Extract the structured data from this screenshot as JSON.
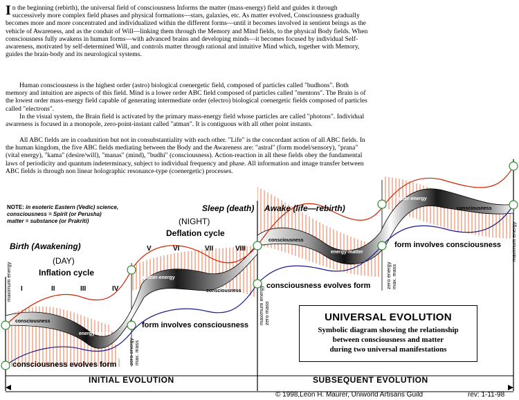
{
  "text": {
    "para1_first": "I",
    "para1": "n the beginning (rebirth), the universal field of consciousness Informs the matter (mass-energy) field and guides it through successively more complex field phases and physical formations—stars, galaxies, etc. As matter evolved, Consciousness gradually becomes more and more concentrated and individualized within the different forms—until it becomes involved in sentient beings as the vehicle of Awareness, and as the conduit of Will—linking them through the Memory and Mind fields, to the physical Body fields. When consciousness fully awakens in human forms—with advanced brains and developing minds—it becomes focused by individual Self-awareness, motivated by self-determined Will, and controls matter through rational and intuitive Mind which, together with Memory, guides the brain-body and its neurological systems.",
    "para2": "Human consciousness is the highest order (astro) biological coenergetic field, composed of particles called \"budhons\". Both memory and intuition are aspects of this field. Mind is a lower order ABC field composed of particles called \"mentons\". The Brain is of the lowest order mass-energy field capable of generating intermediate order (electro) biological coenergetic fields composed of particles called \"electrons\".",
    "para3": "In the visual system, the Brain field is activated by the primary mass-energy field whose particles are called \"photons\". Individual awareness is focused in a monopole, zero-point-instant called \"atman\". It is contiguous with all other point instants.",
    "para4": "All ABC fields are in coadunition but not in consubstantiality with each other. \"Life\" is the concordant action of all ABC fields. In the human kingdom, the five ABC fields mediating between the Body and the Awareness are: \"astral\" (form model/sensory), \"prana\" (vital energy), \"kama\" (desire/will), \"manas\" (mind), \"budhi\" (consciousness). Action-reaction in all these fields obey the fundamental laws of periodicity and quantum indeterminacy, subject to individual frequency and phase. All information and image transfer between ABC fields is through non linear holographic resonance-type (coenergetic) processes."
  },
  "note": {
    "lead": "NOTE:",
    "line1": "in esoteric Eastern (Vedic) science,",
    "line2": "consciousness = Spirit (or Perusha)",
    "line3": "matter = substance (or Prakriti)"
  },
  "labels": {
    "birth": "Birth (Awakening)",
    "day": "(DAY)",
    "inflation": "Inflation cycle",
    "sleep": "Sleep (death)",
    "night": "(NIGHT)",
    "deflation": "Deflation cycle",
    "awake": "Awake (life—rebirth)",
    "stage_i": "I",
    "stage_ii": "II",
    "stage_iii": "III",
    "stage_iv": "IV",
    "stage_v": "V",
    "stage_vi": "VI",
    "stage_vii": "VII",
    "stage_viii": "VIII",
    "cef1": "consciousness evolves form",
    "fic1": "form involves consciousness",
    "cef2": "consciousness evolves form",
    "fic2": "form involves consciousness",
    "max_energy_left": "maximum energy",
    "zero_energy_1a": "zero energy",
    "zero_energy_1b": "max. mass",
    "max_energy_mid_a": "maximum energy",
    "max_energy_mid_b": "zero mass",
    "zero_energy_2a": "zero energy",
    "zero_energy_2b": "max. mass",
    "max_energy_right": "maximum energy",
    "initial_evolution": "INITIAL EVOLUTION",
    "subsequent_evolution": "SUBSEQUENT EVOLUTION",
    "w_consciousness": "consciousness",
    "w_energy_matter": "energy-matter",
    "w_matter_energy": "matter-energy"
  },
  "box": {
    "title": "UNIVERSAL EVOLUTION",
    "line1": "Symbolic diagram showing the relationship",
    "line2": "between consciousness and matter",
    "line3": "during two universal manifestations"
  },
  "footer": {
    "copyright": "© 1998,Leon H. Maurer, Uniworld Artisans Guild",
    "rev": "rev: 1-11-98"
  },
  "colors": {
    "red": "#cc2200",
    "blue": "#1a1a8c",
    "circle": "#2a8a2a",
    "hatch": "#e8501a"
  }
}
